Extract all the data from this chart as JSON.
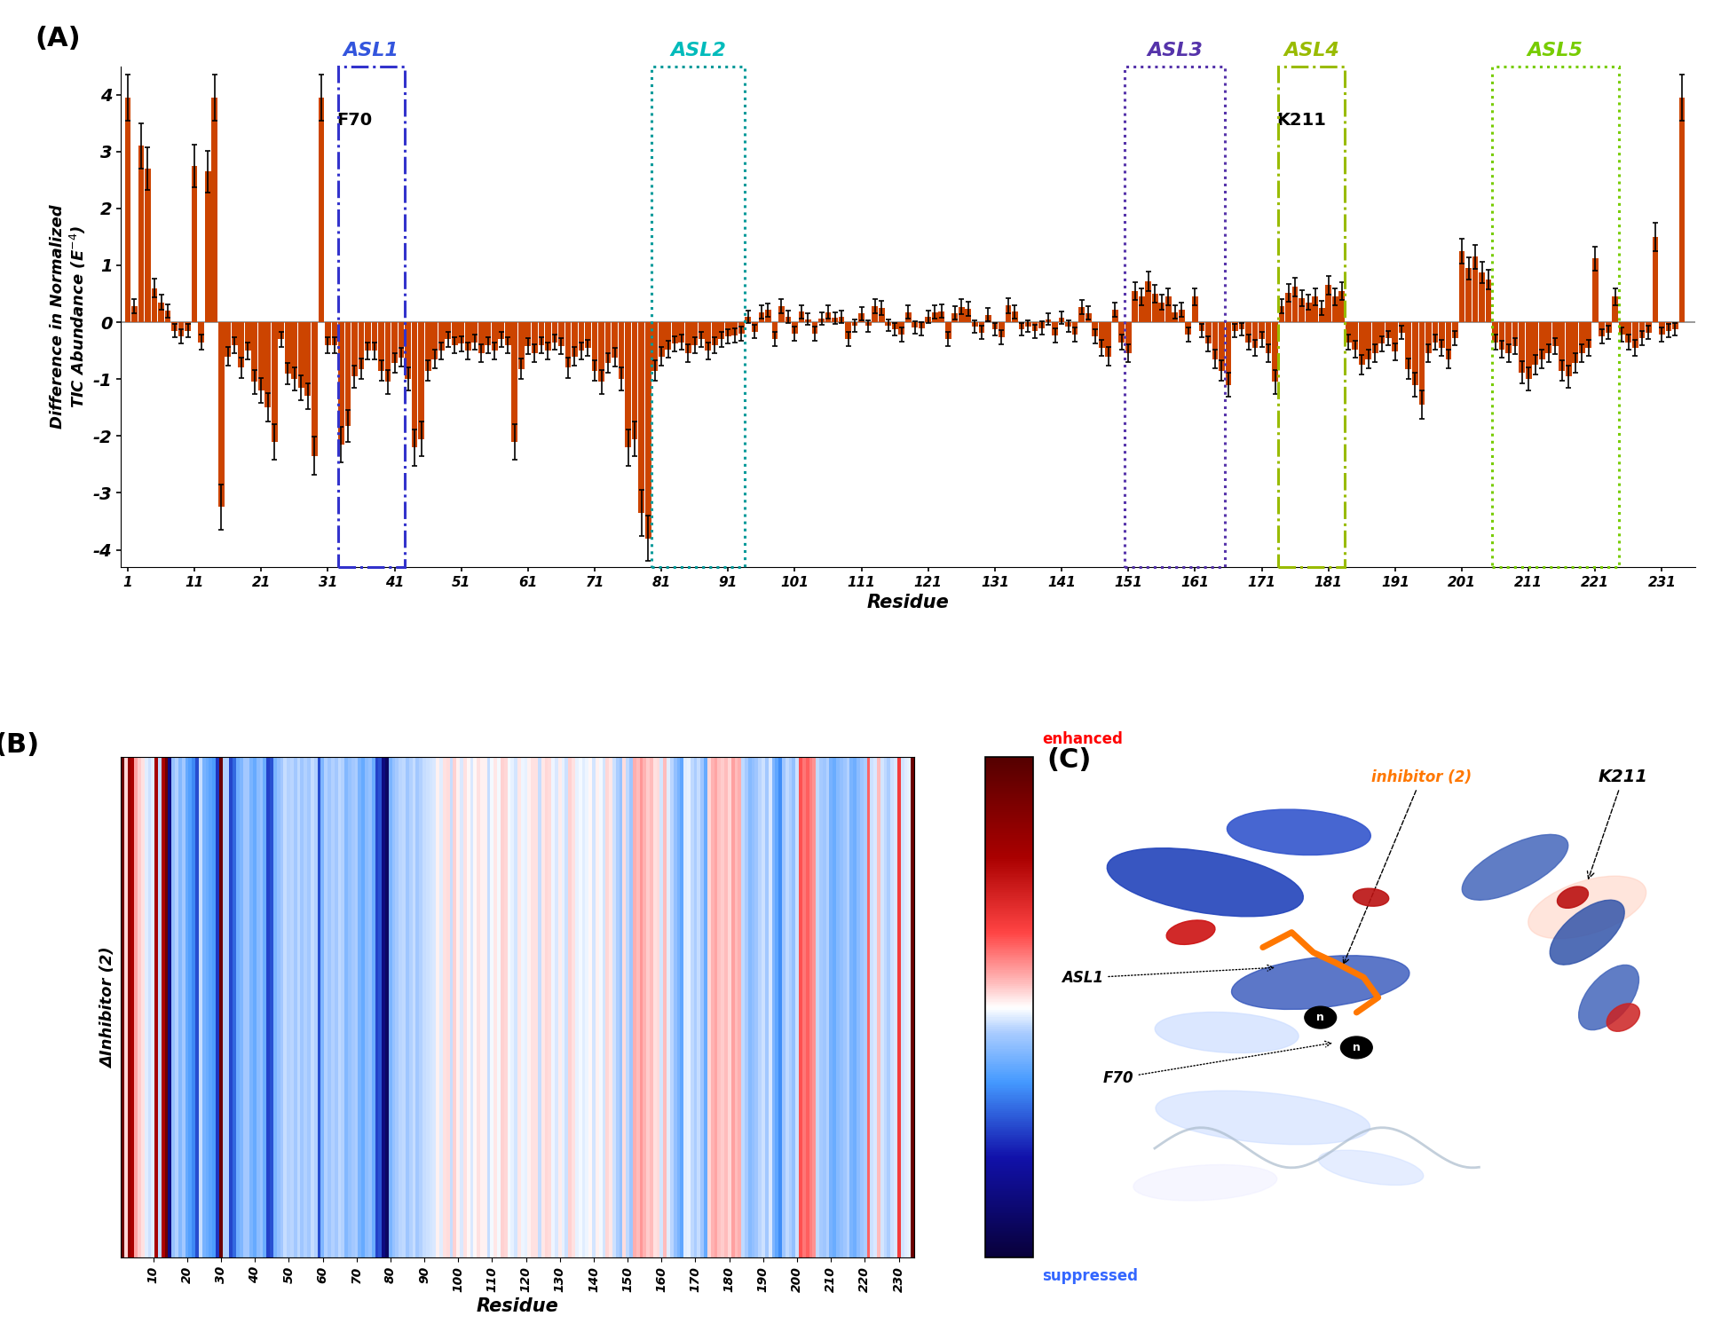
{
  "bar_color": "#CC4400",
  "ylim": [
    -4.3,
    4.5
  ],
  "yticks": [
    -4,
    -3,
    -2,
    -1,
    0,
    1,
    2,
    3,
    4
  ],
  "xtick_labels": [
    "1",
    "11",
    "21",
    "31",
    "41",
    "51",
    "61",
    "71",
    "81",
    "91",
    "101",
    "111",
    "121",
    "131",
    "141",
    "151",
    "161",
    "171",
    "181",
    "191",
    "201",
    "211",
    "221",
    "231"
  ],
  "xtick_positions": [
    1,
    11,
    21,
    31,
    41,
    51,
    61,
    71,
    81,
    91,
    101,
    111,
    121,
    131,
    141,
    151,
    161,
    171,
    181,
    191,
    201,
    211,
    221,
    231
  ],
  "xlabel": "Residue",
  "ylabel_line1": "Difference in Normalized",
  "ylabel_line2": "TIC Abundance (E",
  "panel_label_A": "(A)",
  "panel_label_B": "(B)",
  "panel_label_C": "(C)",
  "asl_boxes": [
    {
      "label": "ASL1",
      "x_start": 32.5,
      "x_end": 42.5,
      "y_bot": -4.3,
      "y_top": 4.5,
      "color": "#3333CC",
      "linestyle": "dashdot",
      "label_color": "#3355DD"
    },
    {
      "label": "ASL2",
      "x_start": 79.5,
      "x_end": 93.5,
      "y_bot": -4.3,
      "y_top": 4.5,
      "color": "#009999",
      "linestyle": "dotted",
      "label_color": "#00BBBB"
    },
    {
      "label": "ASL3",
      "x_start": 150.5,
      "x_end": 165.5,
      "y_bot": -4.3,
      "y_top": 4.5,
      "color": "#5533AA",
      "linestyle": "dotted",
      "label_color": "#5533AA"
    },
    {
      "label": "ASL4",
      "x_start": 173.5,
      "x_end": 183.5,
      "y_bot": -4.3,
      "y_top": 4.5,
      "color": "#99BB00",
      "linestyle": "dashdot",
      "label_color": "#99BB00"
    },
    {
      "label": "ASL5",
      "x_start": 205.5,
      "x_end": 224.5,
      "y_bot": -4.3,
      "y_top": 4.5,
      "color": "#77CC00",
      "linestyle": "dotted",
      "label_color": "#77CC00"
    }
  ],
  "F70_x": 35,
  "F70_y": 3.55,
  "K211_x": 177,
  "K211_y": 3.55,
  "heatmap_xlabel": "Residue",
  "heatmap_ylabel": "ΔInhibitor (2)",
  "colorbar_label_enhanced": "enhanced",
  "colorbar_label_suppressed": "suppressed"
}
